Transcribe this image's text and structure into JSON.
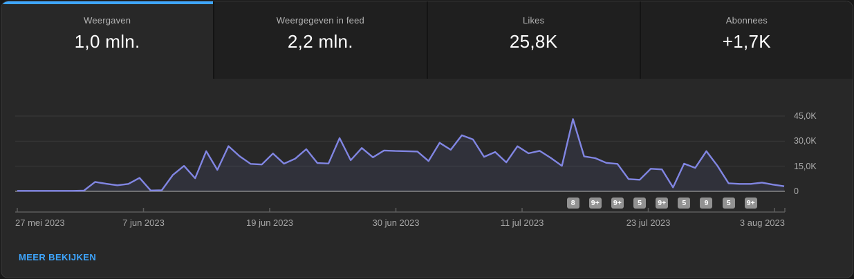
{
  "tabs": [
    {
      "id": "weergaven",
      "label": "Weergaven",
      "value": "1,0 mln.",
      "active": true
    },
    {
      "id": "weergegeven-in-feed",
      "label": "Weergegeven in feed",
      "value": "2,2 mln.",
      "active": false
    },
    {
      "id": "likes",
      "label": "Likes",
      "value": "25,8K",
      "active": false
    },
    {
      "id": "abonnees",
      "label": "Abonnees",
      "value": "+1,7K",
      "active": false
    }
  ],
  "chart_data": {
    "type": "area",
    "series_name": "Weergaven",
    "unit": "thousands_of_views_per_day",
    "x_tick_labels": [
      "27 mei 2023",
      "7 jun 2023",
      "19 jun 2023",
      "30 jun 2023",
      "11 jul 2023",
      "23 jul 2023",
      "3 aug 2023"
    ],
    "y_tick_labels": [
      "0",
      "15,0K",
      "30,0K",
      "45,0K"
    ],
    "ylim_k": [
      0,
      48
    ],
    "grid": true,
    "legend": false,
    "y_axis_side": "right",
    "n_points": 70,
    "values_k": [
      0.3,
      0.3,
      0.3,
      0.3,
      0.3,
      0.3,
      0.4,
      5.6,
      4.5,
      3.6,
      4.4,
      8.0,
      0.5,
      0.6,
      9.8,
      15.2,
      7.8,
      24.0,
      12.8,
      27.0,
      21.0,
      16.4,
      16.0,
      22.6,
      16.5,
      19.5,
      25.2,
      16.9,
      16.6,
      31.8,
      18.6,
      25.9,
      20.3,
      24.4,
      24.1,
      24.0,
      23.8,
      18.1,
      29.0,
      24.8,
      33.5,
      31.0,
      20.6,
      23.5,
      17.3,
      26.9,
      22.7,
      24.2,
      20.0,
      15.2,
      43.2,
      20.9,
      19.8,
      17.0,
      16.4,
      7.3,
      6.9,
      13.5,
      13.1,
      2.3,
      16.5,
      14.0,
      24.0,
      15.2,
      4.8,
      4.4,
      4.4,
      5.2,
      4.0,
      3.0
    ]
  },
  "chart_badges": {
    "items": [
      {
        "label": "8",
        "day": 50
      },
      {
        "label": "9+",
        "day": 52
      },
      {
        "label": "9+",
        "day": 54
      },
      {
        "label": "5",
        "day": 56
      },
      {
        "label": "9+",
        "day": 58
      },
      {
        "label": "5",
        "day": 60
      },
      {
        "label": "9",
        "day": 62
      },
      {
        "label": "5",
        "day": 64
      },
      {
        "label": "9+",
        "day": 66
      }
    ]
  },
  "footer": {
    "more_label": "MEER BEKIJKEN"
  },
  "colors": {
    "accent_blue": "#3ea6ff",
    "line_purple": "#8186e3",
    "area_fill": "rgba(131,136,227,0.10)",
    "gridline": "#3a3a3a",
    "zero_line": "#9a9a9a",
    "axis_line": "#5c5c5c",
    "badge_gray": "#929292",
    "card_bg": "#282828",
    "inactive_tab_bg": "#1f1f1f"
  }
}
